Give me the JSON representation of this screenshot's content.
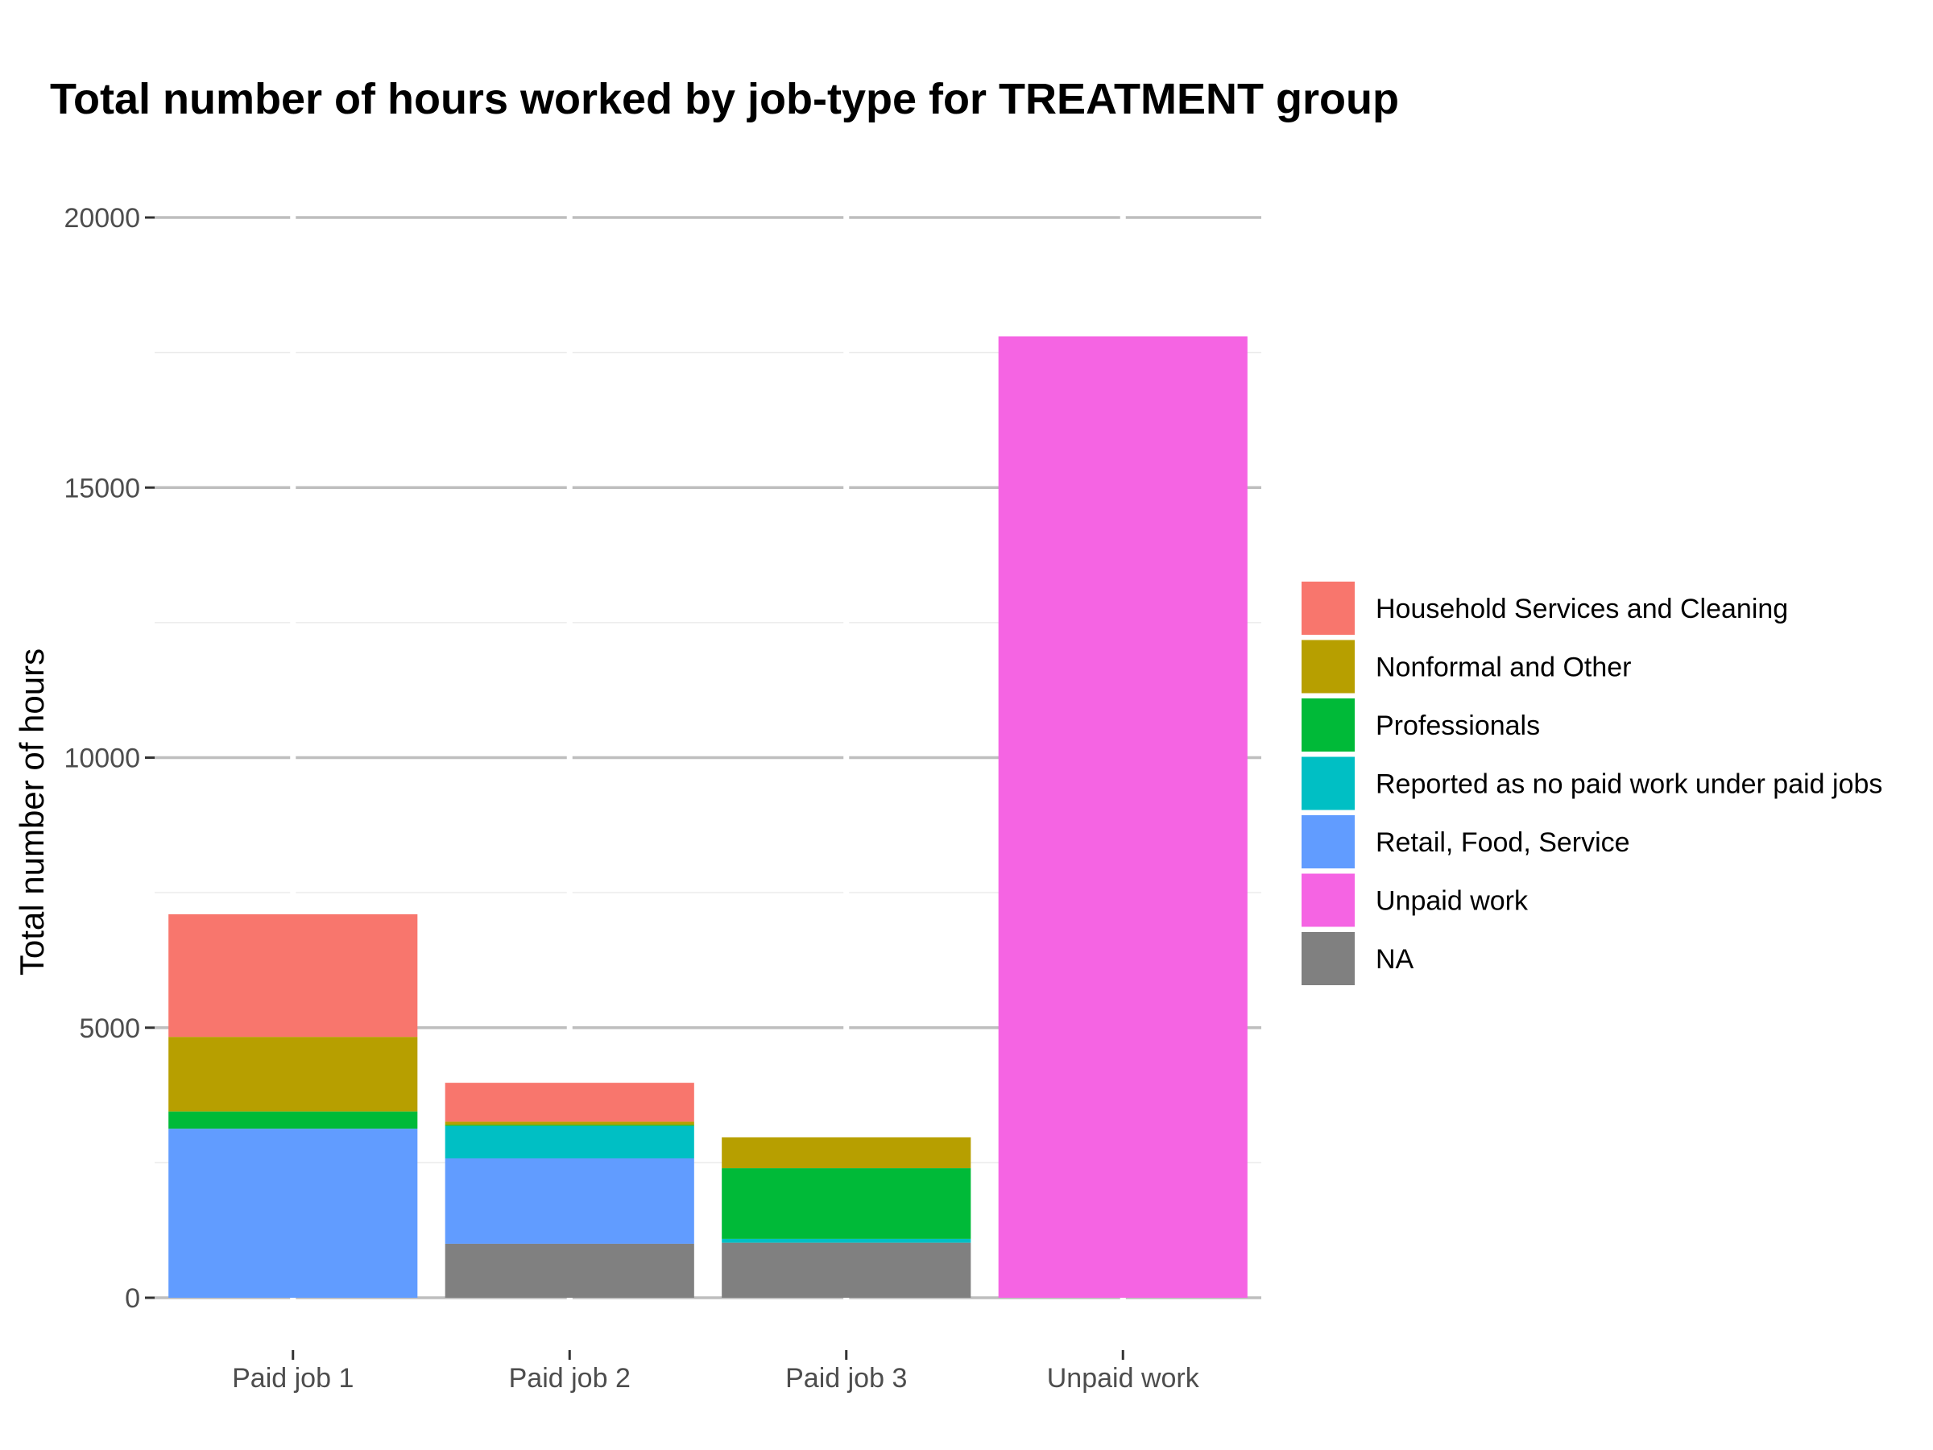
{
  "chart_data": {
    "type": "bar",
    "stacked": true,
    "title": "Total number of hours worked by job-type for TREATMENT group",
    "xlabel": "",
    "ylabel": "Total number of hours",
    "ylim": [
      0,
      20000
    ],
    "yticks": [
      0,
      5000,
      10000,
      15000,
      20000
    ],
    "grid": true,
    "legend_position": "right",
    "categories": [
      "Paid job 1",
      "Paid job 2",
      "Paid job 3",
      "Unpaid work"
    ],
    "series": [
      {
        "name": "Household Services and Cleaning",
        "color": "#F8766D",
        "values": [
          2270,
          720,
          0,
          0
        ]
      },
      {
        "name": "Nonformal and Other",
        "color": "#B79F00",
        "values": [
          1380,
          60,
          570,
          0
        ]
      },
      {
        "name": "Professionals",
        "color": "#00BA38",
        "values": [
          320,
          20,
          1310,
          0
        ]
      },
      {
        "name": "Reported as no paid work under paid jobs",
        "color": "#00BFC4",
        "values": [
          0,
          600,
          70,
          0
        ]
      },
      {
        "name": "Retail, Food, Service",
        "color": "#619CFF",
        "values": [
          3130,
          1580,
          0,
          0
        ]
      },
      {
        "name": "Unpaid work",
        "color": "#F564E3",
        "values": [
          0,
          0,
          0,
          17800
        ]
      },
      {
        "name": "NA",
        "color": "#808080",
        "values": [
          0,
          1000,
          1020,
          0
        ]
      }
    ]
  }
}
